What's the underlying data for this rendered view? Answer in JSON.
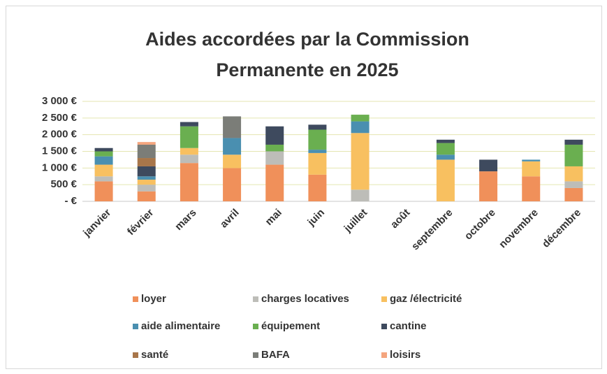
{
  "chart_data": {
    "type": "stacked-bar",
    "title": "Aides accordées par la Commission Permanente en 2025",
    "categories": [
      "janvier",
      "février",
      "mars",
      "avril",
      "mai",
      "juin",
      "juillet",
      "août",
      "septembre",
      "octobre",
      "novembre",
      "décembre"
    ],
    "series": [
      {
        "name": "loyer",
        "color": "#f0905a",
        "values": [
          600,
          300,
          1150,
          1000,
          1100,
          800,
          0,
          0,
          0,
          900,
          750,
          400
        ]
      },
      {
        "name": "charges locatives",
        "color": "#bdbdb8",
        "values": [
          150,
          200,
          250,
          0,
          400,
          0,
          350,
          0,
          0,
          0,
          0,
          200
        ]
      },
      {
        "name": "gaz /électricité",
        "color": "#f8c060",
        "values": [
          350,
          150,
          200,
          400,
          0,
          650,
          1700,
          0,
          1250,
          0,
          450,
          450
        ]
      },
      {
        "name": "aide alimentaire",
        "color": "#4a8fb0",
        "values": [
          250,
          100,
          0,
          500,
          0,
          100,
          350,
          0,
          150,
          0,
          50,
          0
        ]
      },
      {
        "name": "équipement",
        "color": "#6aaf50",
        "values": [
          150,
          0,
          650,
          0,
          200,
          600,
          200,
          0,
          350,
          0,
          0,
          650
        ]
      },
      {
        "name": "cantine",
        "color": "#3e4a5e",
        "values": [
          100,
          300,
          130,
          0,
          550,
          150,
          0,
          0,
          100,
          350,
          0,
          150
        ]
      },
      {
        "name": "santé",
        "color": "#a8764a",
        "values": [
          0,
          250,
          0,
          0,
          0,
          0,
          0,
          0,
          0,
          0,
          0,
          0
        ]
      },
      {
        "name": "BAFA",
        "color": "#7b7d78",
        "values": [
          0,
          400,
          0,
          650,
          0,
          0,
          0,
          0,
          0,
          0,
          0,
          0
        ]
      },
      {
        "name": "loisirs",
        "color": "#f4a57e",
        "values": [
          0,
          80,
          0,
          0,
          0,
          0,
          0,
          0,
          0,
          0,
          0,
          0
        ]
      }
    ],
    "ylim": [
      0,
      3000
    ],
    "yticks": [
      {
        "value": 0,
        "label": "- €"
      },
      {
        "value": 500,
        "label": "500 €"
      },
      {
        "value": 1000,
        "label": "1 000 €"
      },
      {
        "value": 1500,
        "label": "1 500 €"
      },
      {
        "value": 2000,
        "label": "2 000 €"
      },
      {
        "value": 2500,
        "label": "2 500 €"
      },
      {
        "value": 3000,
        "label": "3 000 €"
      }
    ],
    "grid": true,
    "legend": "bottom"
  }
}
